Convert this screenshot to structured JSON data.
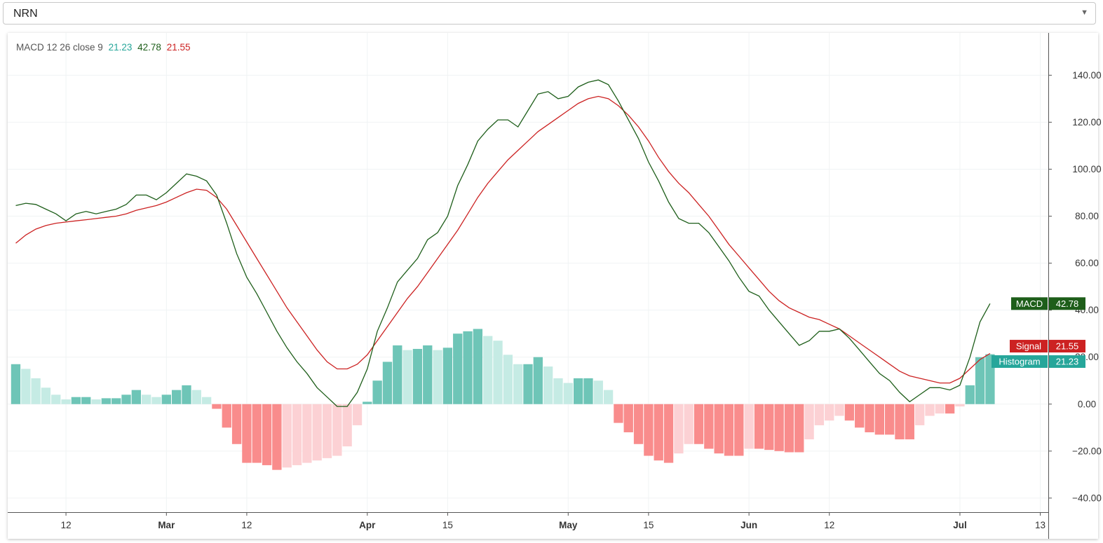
{
  "symbol_select": {
    "value": "NRN"
  },
  "legend": {
    "label": "MACD 12 26 close 9",
    "histogram": "21.23",
    "macd": "42.78",
    "signal": "21.55"
  },
  "colors": {
    "macd": "#1e5e1a",
    "signal": "#cc2222",
    "hist_pos_up": "#6ec5b7",
    "hist_pos_down": "#c5ebe4",
    "hist_neg_down": "#f98c8c",
    "hist_neg_up": "#fcd1d4",
    "grid": "#f0f3f4",
    "axis": "#555555"
  },
  "chart_data": {
    "type": "line",
    "x_labels": [
      {
        "label": "12",
        "index": 5
      },
      {
        "label": "Mar",
        "index": 15
      },
      {
        "label": "12",
        "index": 23
      },
      {
        "label": "Apr",
        "index": 35
      },
      {
        "label": "15",
        "index": 43
      },
      {
        "label": "May",
        "index": 55
      },
      {
        "label": "15",
        "index": 63
      },
      {
        "label": "Jun",
        "index": 73
      },
      {
        "label": "12",
        "index": 81
      },
      {
        "label": "Jul",
        "index": 94
      },
      {
        "label": "13",
        "index": 102
      }
    ],
    "bold_x_labels": [
      "Mar",
      "Apr",
      "May",
      "Jun",
      "Jul"
    ],
    "x_range": [
      -0.8,
      102.8
    ],
    "y_ticks": [
      140,
      120,
      100,
      80,
      60,
      40,
      20,
      0,
      -20,
      -40
    ],
    "y_tick_labels": [
      "140.00",
      "120.00",
      "100.00",
      "80.00",
      "60.00",
      "40.00",
      "20.00",
      "0.00",
      "−20.00",
      "−40.00"
    ],
    "ylim": [
      -46,
      158
    ],
    "series": [
      {
        "name": "MACD",
        "values": [
          84.5,
          85.5,
          85,
          83,
          81,
          78,
          81,
          82,
          81,
          82,
          83,
          85,
          89,
          89,
          87,
          90,
          94,
          98,
          97,
          95,
          89,
          77,
          64,
          54,
          47,
          39,
          31,
          24,
          18,
          13,
          7,
          3,
          -1,
          -1,
          5,
          15,
          31,
          41,
          52,
          57,
          62,
          70,
          73,
          80,
          93,
          102,
          112,
          117,
          121,
          121,
          118,
          125,
          132,
          133,
          130,
          131,
          135,
          137,
          138,
          136,
          129,
          121,
          113,
          103,
          95,
          86,
          79,
          77,
          77,
          73,
          67,
          61,
          54,
          48,
          46,
          40,
          35,
          30,
          25,
          27,
          31,
          31,
          32,
          28,
          23,
          18,
          13,
          10,
          5,
          1,
          4,
          7,
          7,
          6,
          8,
          20,
          35,
          42.78
        ]
      },
      {
        "name": "Signal",
        "values": [
          68.5,
          72,
          74.5,
          76,
          77,
          77.5,
          78,
          78.5,
          79,
          79.5,
          80,
          81,
          82.5,
          83.5,
          84.5,
          86,
          88,
          90,
          91.5,
          91,
          88,
          83,
          76,
          69,
          62,
          55,
          48,
          41,
          35,
          29,
          23,
          18,
          15,
          15,
          17,
          21,
          27,
          33,
          39,
          45,
          50,
          56,
          62,
          68,
          74,
          81,
          88,
          94,
          99,
          104,
          108,
          112,
          116,
          119,
          122,
          125,
          128,
          130,
          131,
          130,
          127,
          123,
          118,
          112,
          105,
          99,
          94,
          90,
          85,
          80,
          74,
          68,
          63,
          58,
          53,
          48,
          44,
          41,
          39,
          37,
          36,
          34,
          32,
          29,
          26,
          23,
          20,
          17,
          14,
          12,
          11,
          10,
          9,
          9,
          11,
          15,
          19,
          21.55
        ]
      },
      {
        "name": "Histogram",
        "values": [
          17,
          15,
          11,
          7,
          4,
          2,
          3,
          3,
          2,
          2.5,
          2.5,
          4,
          6,
          4,
          3,
          4,
          6,
          8,
          6,
          3,
          -2,
          -10,
          -17,
          -25,
          -25,
          -26,
          -28,
          -27,
          -26,
          -25,
          -24,
          -23,
          -22,
          -18,
          -9,
          1,
          10,
          18,
          25,
          23,
          23.5,
          25,
          23,
          24,
          30,
          31,
          32,
          29,
          27,
          21,
          17,
          17,
          20,
          16,
          11,
          9,
          11,
          11,
          10,
          6,
          -8,
          -12,
          -17,
          -22,
          -24,
          -25,
          -21,
          -17,
          -17,
          -19,
          -21,
          -22,
          -22,
          -19,
          -19,
          -19.5,
          -20,
          -20.5,
          -20.5,
          -15,
          -9,
          -7,
          -5,
          -7,
          -10,
          -12,
          -13,
          -13,
          -15,
          -15,
          -9,
          -5,
          -4,
          -4,
          -1,
          8,
          20,
          21.23
        ]
      }
    ]
  }
}
